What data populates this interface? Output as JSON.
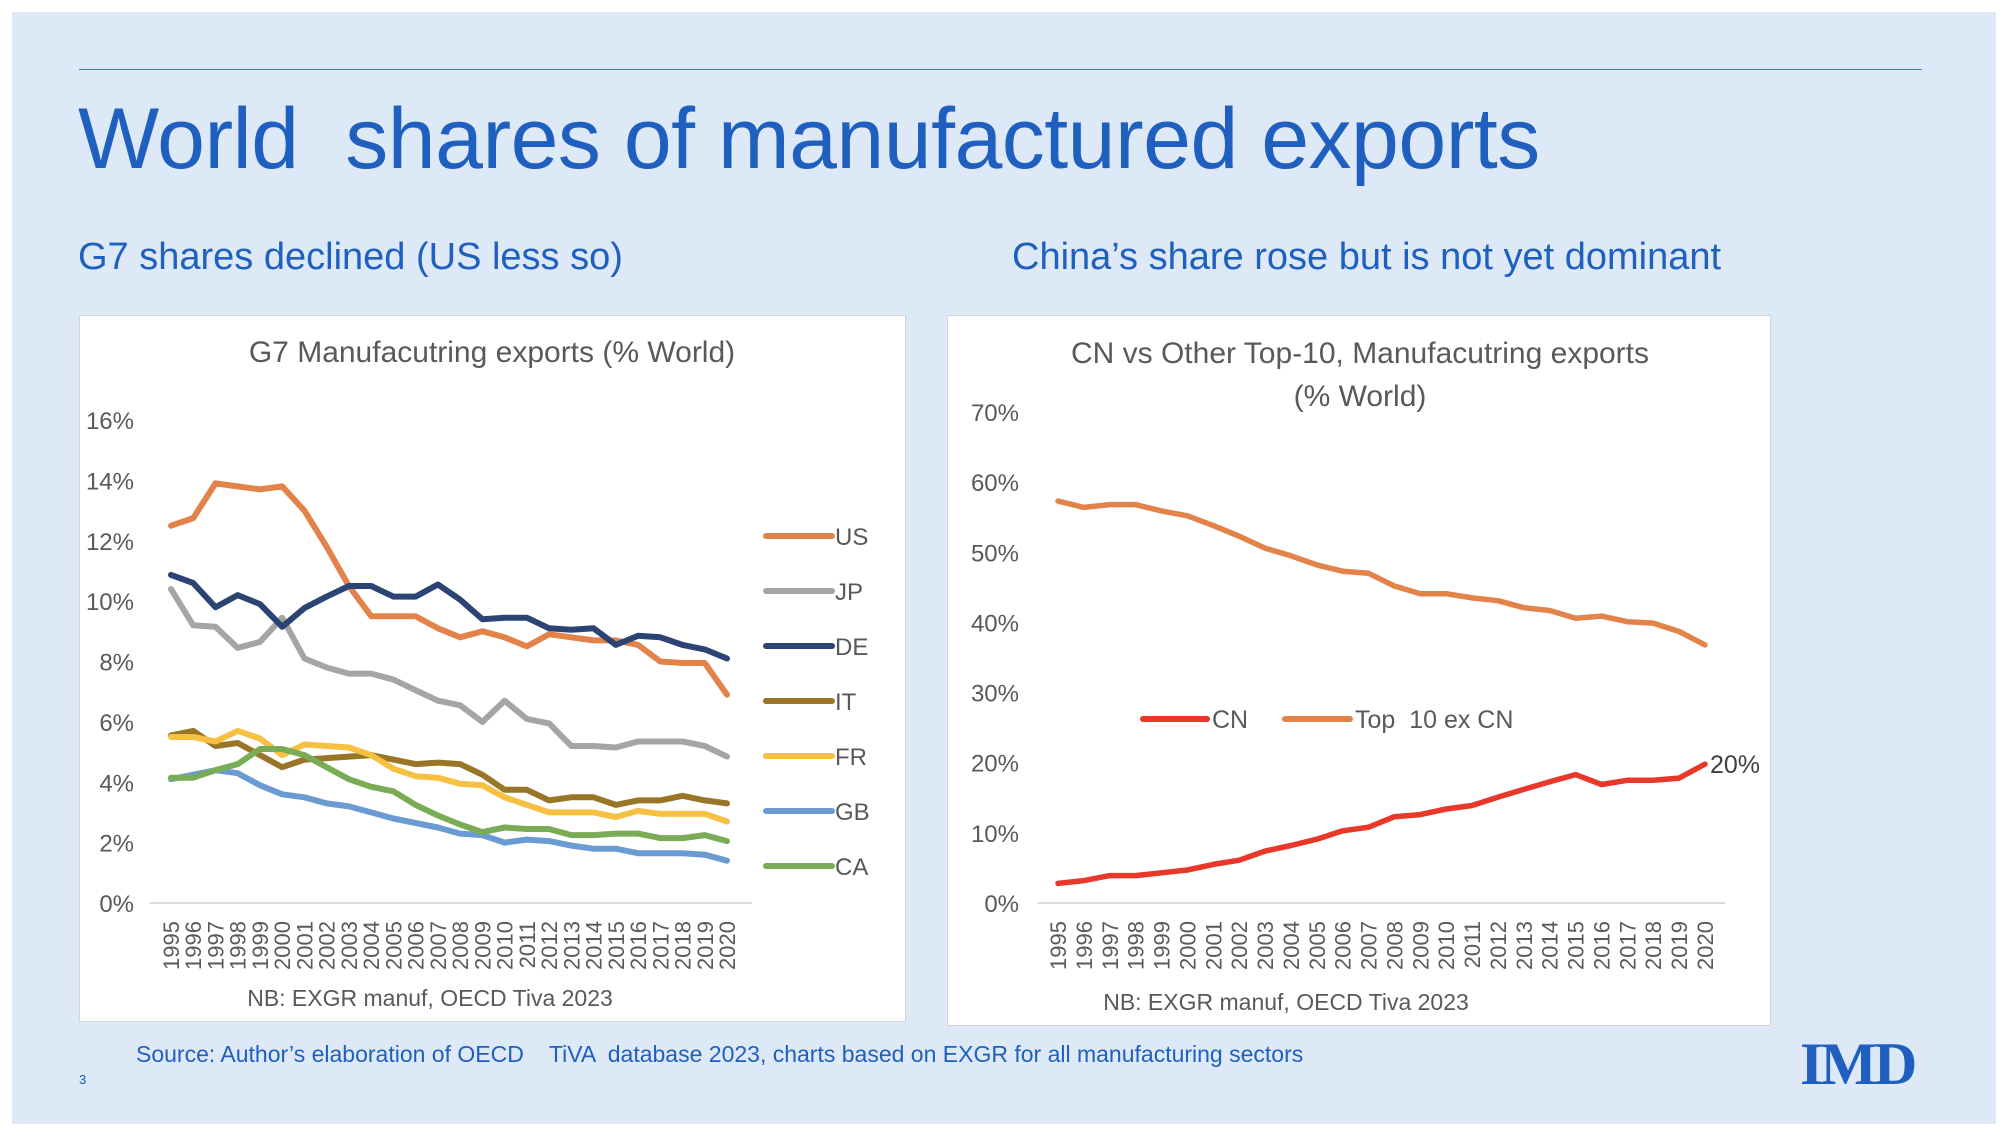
{
  "title": "World  shares of manufactured exports",
  "subtitle_left": "G7 shares declined (US less so)",
  "subtitle_right": "China’s share rose but is not yet dominant",
  "source": "Source: Author’s elaboration of OECD    TiVA  database 2023, charts based on EXGR for all manufacturing sectors",
  "page_number": "3",
  "logo": "IMD",
  "chart_data": [
    {
      "type": "line",
      "title": "G7 Manufacutring exports (% World)",
      "note": "NB: EXGR manuf, OECD Tiva 2023",
      "x": [
        1995,
        1996,
        1997,
        1998,
        1999,
        2000,
        2001,
        2002,
        2003,
        2004,
        2005,
        2006,
        2007,
        2008,
        2009,
        2010,
        2011,
        2012,
        2013,
        2014,
        2015,
        2016,
        2017,
        2018,
        2019,
        2020
      ],
      "ylim": [
        0,
        16
      ],
      "yticks": [
        "0%",
        "2%",
        "4%",
        "6%",
        "8%",
        "10%",
        "12%",
        "14%",
        "16%"
      ],
      "grid": false,
      "legend": "right",
      "series": [
        {
          "name": "US",
          "color": "#e2834a",
          "values": [
            12.5,
            12.75,
            13.9,
            13.8,
            13.7,
            13.8,
            13.0,
            11.8,
            10.5,
            9.5,
            9.5,
            9.5,
            9.1,
            8.8,
            9.0,
            8.8,
            8.5,
            8.9,
            8.8,
            8.7,
            8.7,
            8.55,
            8.0,
            7.95,
            7.95,
            6.9
          ]
        },
        {
          "name": "JP",
          "color": "#a5a5a5",
          "values": [
            10.4,
            9.2,
            9.15,
            8.45,
            8.65,
            9.45,
            8.1,
            7.8,
            7.6,
            7.6,
            7.4,
            7.05,
            6.7,
            6.55,
            6.0,
            6.7,
            6.1,
            5.95,
            5.2,
            5.2,
            5.15,
            5.35,
            5.35,
            5.35,
            5.2,
            4.85
          ]
        },
        {
          "name": "DE",
          "color": "#2b4474",
          "values": [
            10.87,
            10.6,
            9.8,
            10.2,
            9.9,
            9.15,
            9.77,
            10.15,
            10.5,
            10.5,
            10.15,
            10.15,
            10.55,
            10.05,
            9.4,
            9.45,
            9.45,
            9.1,
            9.05,
            9.1,
            8.55,
            8.85,
            8.8,
            8.55,
            8.4,
            8.1
          ]
        },
        {
          "name": "IT",
          "color": "#997527",
          "values": [
            5.55,
            5.7,
            5.2,
            5.3,
            4.9,
            4.5,
            4.75,
            4.8,
            4.85,
            4.9,
            4.75,
            4.6,
            4.65,
            4.6,
            4.25,
            3.75,
            3.75,
            3.4,
            3.5,
            3.5,
            3.25,
            3.4,
            3.4,
            3.55,
            3.4,
            3.3
          ]
        },
        {
          "name": "FR",
          "color": "#f6c143",
          "values": [
            5.5,
            5.5,
            5.35,
            5.7,
            5.45,
            4.9,
            5.25,
            5.2,
            5.15,
            4.9,
            4.45,
            4.2,
            4.15,
            3.95,
            3.9,
            3.5,
            3.25,
            3.0,
            3.0,
            3.0,
            2.85,
            3.05,
            2.95,
            2.95,
            2.95,
            2.7
          ]
        },
        {
          "name": "GB",
          "color": "#6a9bd3",
          "values": [
            4.1,
            4.25,
            4.4,
            4.3,
            3.9,
            3.6,
            3.5,
            3.3,
            3.2,
            3.0,
            2.8,
            2.65,
            2.5,
            2.3,
            2.25,
            2.0,
            2.1,
            2.05,
            1.9,
            1.8,
            1.8,
            1.65,
            1.65,
            1.65,
            1.6,
            1.4
          ]
        },
        {
          "name": "CA",
          "color": "#7aab55",
          "values": [
            4.15,
            4.15,
            4.4,
            4.6,
            5.1,
            5.1,
            4.9,
            4.5,
            4.1,
            3.85,
            3.7,
            3.25,
            2.9,
            2.6,
            2.35,
            2.5,
            2.45,
            2.45,
            2.25,
            2.25,
            2.3,
            2.3,
            2.15,
            2.15,
            2.25,
            2.05
          ]
        }
      ]
    },
    {
      "type": "line",
      "title": "CN vs Other Top-10, Manufacutring exports (% World)",
      "note": "NB: EXGR manuf, OECD Tiva 2023",
      "x": [
        1995,
        1996,
        1997,
        1998,
        1999,
        2000,
        2001,
        2002,
        2003,
        2004,
        2005,
        2006,
        2007,
        2008,
        2009,
        2010,
        2011,
        2012,
        2013,
        2014,
        2015,
        2016,
        2017,
        2018,
        2019,
        2020
      ],
      "ylim": [
        0,
        70
      ],
      "yticks": [
        "0%",
        "10%",
        "20%",
        "30%",
        "40%",
        "50%",
        "60%",
        "70%"
      ],
      "grid": false,
      "legend": "center",
      "annotation": "20%",
      "series": [
        {
          "name": "CN",
          "color": "#e8382a",
          "values": [
            2.8,
            3.2,
            3.9,
            3.9,
            4.3,
            4.7,
            5.5,
            6.1,
            7.4,
            8.2,
            9.1,
            10.3,
            10.8,
            12.3,
            12.6,
            13.4,
            13.9,
            15.1,
            16.2,
            17.3,
            18.3,
            16.9,
            17.5,
            17.5,
            17.8,
            19.8
          ]
        },
        {
          "name": "Top  10 ex CN",
          "color": "#e2834a",
          "values": [
            57.3,
            56.4,
            56.8,
            56.8,
            55.9,
            55.2,
            53.8,
            52.3,
            50.6,
            49.5,
            48.2,
            47.3,
            47.0,
            45.2,
            44.1,
            44.1,
            43.5,
            43.1,
            42.1,
            41.7,
            40.6,
            40.9,
            40.1,
            39.9,
            38.7,
            36.8
          ]
        }
      ]
    }
  ]
}
